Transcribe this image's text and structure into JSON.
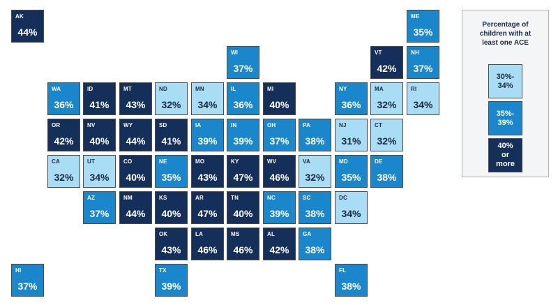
{
  "colors": {
    "light": "#a9dcf5",
    "mid": "#1a86cc",
    "dark": "#14305a"
  },
  "legend": {
    "title_line1": "Percentage of",
    "title_line2": "children with at",
    "title_line3": "least one ACE",
    "items": [
      {
        "line1": "30%-",
        "line2": "34%",
        "line3": "",
        "tier": "light"
      },
      {
        "line1": "35%-",
        "line2": "39%",
        "line3": "",
        "tier": "mid"
      },
      {
        "line1": "40%",
        "line2": "or",
        "line3": "more",
        "tier": "dark"
      }
    ]
  },
  "states": [
    {
      "abbr": "AK",
      "value": "44%",
      "tier": "dark",
      "row": 0,
      "col": 0
    },
    {
      "abbr": "ME",
      "value": "35%",
      "tier": "mid",
      "row": 0,
      "col": 11
    },
    {
      "abbr": "WI",
      "value": "37%",
      "tier": "mid",
      "row": 1,
      "col": 6
    },
    {
      "abbr": "VT",
      "value": "42%",
      "tier": "dark",
      "row": 1,
      "col": 10
    },
    {
      "abbr": "NH",
      "value": "37%",
      "tier": "mid",
      "row": 1,
      "col": 11
    },
    {
      "abbr": "WA",
      "value": "36%",
      "tier": "mid",
      "row": 2,
      "col": 1
    },
    {
      "abbr": "ID",
      "value": "41%",
      "tier": "dark",
      "row": 2,
      "col": 2
    },
    {
      "abbr": "MT",
      "value": "43%",
      "tier": "dark",
      "row": 2,
      "col": 3
    },
    {
      "abbr": "ND",
      "value": "32%",
      "tier": "light",
      "row": 2,
      "col": 4
    },
    {
      "abbr": "MN",
      "value": "34%",
      "tier": "light",
      "row": 2,
      "col": 5
    },
    {
      "abbr": "IL",
      "value": "36%",
      "tier": "mid",
      "row": 2,
      "col": 6
    },
    {
      "abbr": "MI",
      "value": "40%",
      "tier": "dark",
      "row": 2,
      "col": 7
    },
    {
      "abbr": "NY",
      "value": "36%",
      "tier": "mid",
      "row": 2,
      "col": 9
    },
    {
      "abbr": "MA",
      "value": "32%",
      "tier": "light",
      "row": 2,
      "col": 10
    },
    {
      "abbr": "RI",
      "value": "34%",
      "tier": "light",
      "row": 2,
      "col": 11
    },
    {
      "abbr": "OR",
      "value": "42%",
      "tier": "dark",
      "row": 3,
      "col": 1
    },
    {
      "abbr": "NV",
      "value": "40%",
      "tier": "dark",
      "row": 3,
      "col": 2
    },
    {
      "abbr": "WY",
      "value": "44%",
      "tier": "dark",
      "row": 3,
      "col": 3
    },
    {
      "abbr": "SD",
      "value": "41%",
      "tier": "dark",
      "row": 3,
      "col": 4
    },
    {
      "abbr": "IA",
      "value": "39%",
      "tier": "mid",
      "row": 3,
      "col": 5
    },
    {
      "abbr": "IN",
      "value": "39%",
      "tier": "mid",
      "row": 3,
      "col": 6
    },
    {
      "abbr": "OH",
      "value": "37%",
      "tier": "mid",
      "row": 3,
      "col": 7
    },
    {
      "abbr": "PA",
      "value": "38%",
      "tier": "mid",
      "row": 3,
      "col": 8
    },
    {
      "abbr": "NJ",
      "value": "31%",
      "tier": "light",
      "row": 3,
      "col": 9
    },
    {
      "abbr": "CT",
      "value": "32%",
      "tier": "light",
      "row": 3,
      "col": 10
    },
    {
      "abbr": "CA",
      "value": "32%",
      "tier": "light",
      "row": 4,
      "col": 1
    },
    {
      "abbr": "UT",
      "value": "34%",
      "tier": "light",
      "row": 4,
      "col": 2
    },
    {
      "abbr": "CO",
      "value": "40%",
      "tier": "dark",
      "row": 4,
      "col": 3
    },
    {
      "abbr": "NE",
      "value": "35%",
      "tier": "mid",
      "row": 4,
      "col": 4
    },
    {
      "abbr": "MO",
      "value": "43%",
      "tier": "dark",
      "row": 4,
      "col": 5
    },
    {
      "abbr": "KY",
      "value": "47%",
      "tier": "dark",
      "row": 4,
      "col": 6
    },
    {
      "abbr": "WV",
      "value": "46%",
      "tier": "dark",
      "row": 4,
      "col": 7
    },
    {
      "abbr": "VA",
      "value": "32%",
      "tier": "light",
      "row": 4,
      "col": 8
    },
    {
      "abbr": "MD",
      "value": "35%",
      "tier": "mid",
      "row": 4,
      "col": 9
    },
    {
      "abbr": "DE",
      "value": "38%",
      "tier": "mid",
      "row": 4,
      "col": 10
    },
    {
      "abbr": "AZ",
      "value": "37%",
      "tier": "mid",
      "row": 5,
      "col": 2
    },
    {
      "abbr": "NM",
      "value": "44%",
      "tier": "dark",
      "row": 5,
      "col": 3
    },
    {
      "abbr": "KS",
      "value": "40%",
      "tier": "dark",
      "row": 5,
      "col": 4
    },
    {
      "abbr": "AR",
      "value": "47%",
      "tier": "dark",
      "row": 5,
      "col": 5
    },
    {
      "abbr": "TN",
      "value": "40%",
      "tier": "dark",
      "row": 5,
      "col": 6
    },
    {
      "abbr": "NC",
      "value": "39%",
      "tier": "mid",
      "row": 5,
      "col": 7
    },
    {
      "abbr": "SC",
      "value": "38%",
      "tier": "mid",
      "row": 5,
      "col": 8
    },
    {
      "abbr": "DC",
      "value": "34%",
      "tier": "light",
      "row": 5,
      "col": 9
    },
    {
      "abbr": "OK",
      "value": "43%",
      "tier": "dark",
      "row": 6,
      "col": 4
    },
    {
      "abbr": "LA",
      "value": "46%",
      "tier": "dark",
      "row": 6,
      "col": 5
    },
    {
      "abbr": "MS",
      "value": "46%",
      "tier": "dark",
      "row": 6,
      "col": 6
    },
    {
      "abbr": "AL",
      "value": "42%",
      "tier": "dark",
      "row": 6,
      "col": 7
    },
    {
      "abbr": "GA",
      "value": "38%",
      "tier": "mid",
      "row": 6,
      "col": 8
    },
    {
      "abbr": "HI",
      "value": "37%",
      "tier": "mid",
      "row": 7,
      "col": 0
    },
    {
      "abbr": "TX",
      "value": "39%",
      "tier": "mid",
      "row": 7,
      "col": 4
    },
    {
      "abbr": "FL",
      "value": "38%",
      "tier": "mid",
      "row": 7,
      "col": 9
    }
  ]
}
